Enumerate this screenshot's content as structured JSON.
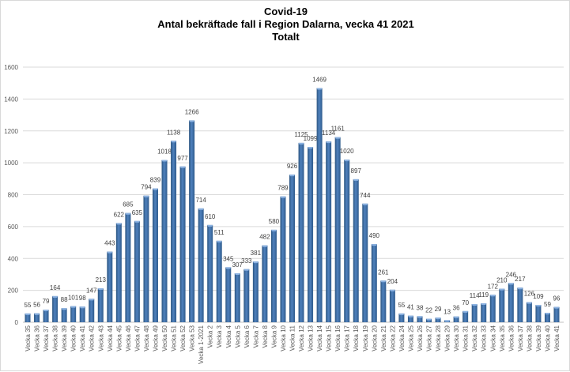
{
  "chart_data": {
    "type": "bar",
    "title": [
      "Covid-19",
      "Antal bekräftade fall i Region Dalarna, vecka 41 2021",
      "Totalt"
    ],
    "xlabel": "",
    "ylabel": "",
    "ylim": [
      0,
      1600
    ],
    "yticks": [
      0,
      200,
      400,
      600,
      800,
      1000,
      1200,
      1400,
      1600
    ],
    "grid": true,
    "legend": "none",
    "bar_color": "#4f81bd",
    "categories": [
      "Vecka 35",
      "Vecka 36",
      "Vecka 37",
      "Vecka 38",
      "Vecka 39",
      "Vecka 40",
      "Vecka 41",
      "Vecka 42",
      "Vecka 43",
      "Vecka 44",
      "Vecka 45",
      "Vecka 46",
      "Vecka 47",
      "Vecka 48",
      "Vecka 49",
      "Vecka 50",
      "Vecka 51",
      "Vecka 52",
      "Vecka 53",
      "Vecka 1-2021",
      "Vecka 2",
      "Vecka 3",
      "Vecka 4",
      "Vecka 5",
      "Vecka 6",
      "Vecka 7",
      "Vecka 8",
      "Vecka 9",
      "Vecka 10",
      "Vecka 11",
      "Vecka 12",
      "Vecka 13",
      "Vecka 14",
      "Vecka 15",
      "Vecka 16",
      "Vecka 17",
      "Vecka 18",
      "Vecka 19",
      "Vecka 20",
      "Vecka 21",
      "Vecka 22",
      "Vecka 24",
      "Vecka 25",
      "Vecka 26",
      "Vecka 27",
      "Vecka 28",
      "Vecka 29",
      "Vecka 30",
      "Vecka 31",
      "Vecka 32",
      "Vecka 33",
      "Vecka 34",
      "Vecka 35",
      "Vecka 36",
      "Vecka 37",
      "Vecka 38",
      "Vecka 39",
      "Vecka 40",
      "Vecka 41"
    ],
    "values": [
      55,
      56,
      79,
      164,
      88,
      101,
      98,
      147,
      213,
      443,
      622,
      685,
      635,
      794,
      839,
      1018,
      1138,
      977,
      1266,
      714,
      610,
      511,
      345,
      307,
      333,
      381,
      482,
      580,
      789,
      926,
      1125,
      1099,
      1469,
      1134,
      1161,
      1020,
      897,
      744,
      490,
      261,
      204,
      55,
      41,
      38,
      22,
      29,
      13,
      36,
      70,
      114,
      119,
      172,
      210,
      246,
      217,
      126,
      109,
      59,
      96
    ]
  }
}
